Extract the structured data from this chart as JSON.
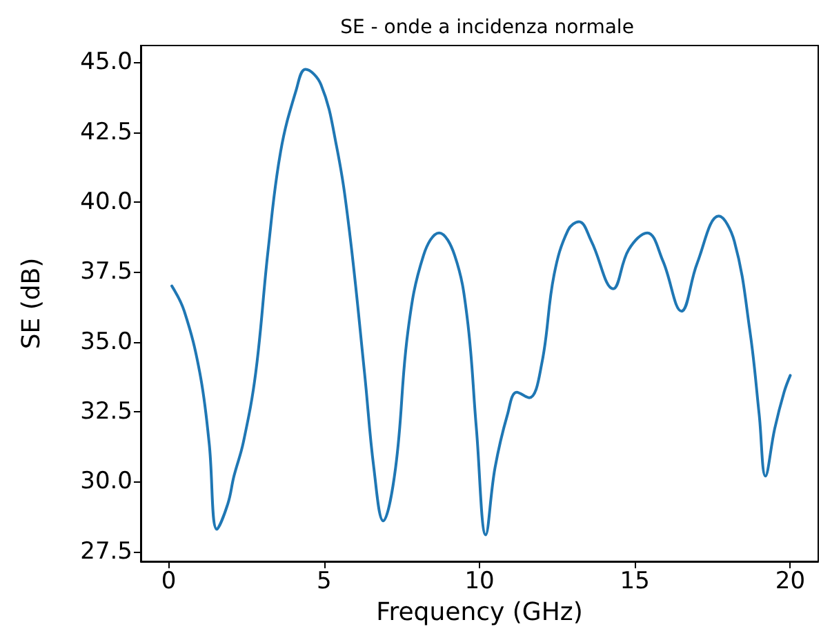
{
  "chart_data": {
    "type": "line",
    "title": "SE - onde a incidenza normale",
    "xlabel": "Frequency (GHz)",
    "ylabel": "SE (dB)",
    "x": [
      0.1,
      0.5,
      1.0,
      1.3,
      1.55,
      1.9,
      2.1,
      2.4,
      2.8,
      3.2,
      3.6,
      4.1,
      4.4,
      4.9,
      5.4,
      5.8,
      6.3,
      6.6,
      6.9,
      7.3,
      7.7,
      8.2,
      8.7,
      9.2,
      9.6,
      9.9,
      10.2,
      10.5,
      10.9,
      11.2,
      11.6,
      12.0,
      12.4,
      12.85,
      13.2,
      13.6,
      14.3,
      14.8,
      15.4,
      15.9,
      16.5,
      17.0,
      17.7,
      18.2,
      18.7,
      19.0,
      19.2,
      19.5,
      19.8,
      20.0
    ],
    "series": [
      {
        "color": "#1f77b4",
        "values": [
          37.0,
          36.1,
          33.9,
          31.4,
          28.3,
          29.2,
          30.2,
          31.4,
          33.9,
          38.3,
          41.8,
          44.0,
          44.75,
          44.2,
          42.0,
          39.1,
          33.9,
          30.5,
          28.6,
          30.5,
          35.4,
          38.1,
          38.9,
          38.1,
          35.9,
          31.9,
          28.1,
          30.5,
          32.4,
          33.2,
          33.0,
          34.2,
          37.4,
          39.0,
          39.3,
          38.6,
          36.9,
          38.3,
          38.9,
          37.9,
          36.1,
          37.8,
          39.5,
          38.6,
          35.4,
          32.4,
          30.2,
          31.9,
          33.2,
          33.8
        ]
      }
    ],
    "xlim": [
      -0.9,
      20.9
    ],
    "xticks": [
      0,
      5,
      10,
      15,
      20
    ],
    "ylim": [
      27.15,
      45.6
    ],
    "yticks": [
      {
        "value": 27.5,
        "label": "27.5"
      },
      {
        "value": 30,
        "label": "30.0"
      },
      {
        "value": 32.5,
        "label": "32.5"
      },
      {
        "value": 35,
        "label": "35.0"
      },
      {
        "value": 37.5,
        "label": "37.5"
      },
      {
        "value": 40,
        "label": "40.0"
      },
      {
        "value": 42.5,
        "label": "42.5"
      },
      {
        "value": 45,
        "label": "45.0"
      }
    ],
    "grid": false,
    "marker": "none",
    "line_style": "solid"
  }
}
